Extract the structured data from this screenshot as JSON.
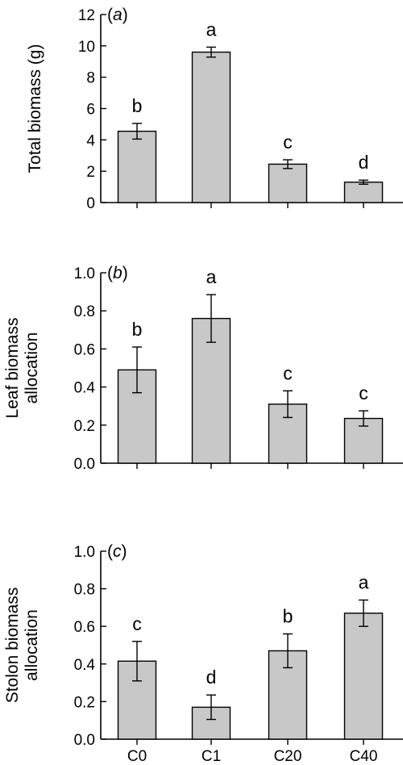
{
  "chart_data": [
    {
      "type": "bar",
      "panel_label": "(a)",
      "panel_letter": "a",
      "ylabel": "Total biomass (g)",
      "ylabel_lines": [
        "Total biomass (g)"
      ],
      "categories": [
        "C0",
        "C1",
        "C20",
        "C40"
      ],
      "show_xtick_labels": false,
      "values": [
        4.55,
        9.6,
        2.45,
        1.3
      ],
      "errors": [
        0.5,
        0.32,
        0.28,
        0.13
      ],
      "significance": [
        "b",
        "a",
        "c",
        "d"
      ],
      "ylim": [
        0,
        12
      ],
      "yticks": [
        0,
        2,
        4,
        6,
        8,
        10,
        12
      ],
      "ytick_labels": [
        "0",
        "2",
        "4",
        "6",
        "8",
        "10",
        "12"
      ],
      "bar_color": "#c8c8c8"
    },
    {
      "type": "bar",
      "panel_label": "(b)",
      "panel_letter": "b",
      "ylabel": "Leaf biomass allocation",
      "ylabel_lines": [
        "Leaf biomass",
        "allocation"
      ],
      "categories": [
        "C0",
        "C1",
        "C20",
        "C40"
      ],
      "show_xtick_labels": false,
      "values": [
        0.49,
        0.76,
        0.31,
        0.235
      ],
      "errors": [
        0.12,
        0.125,
        0.07,
        0.04
      ],
      "significance": [
        "b",
        "a",
        "c",
        "c"
      ],
      "ylim": [
        0,
        1.0
      ],
      "yticks": [
        0,
        0.2,
        0.4,
        0.6,
        0.8,
        1.0
      ],
      "ytick_labels": [
        "0.0",
        "0.2",
        "0.4",
        "0.6",
        "0.8",
        "1.0"
      ],
      "bar_color": "#c8c8c8"
    },
    {
      "type": "bar",
      "panel_label": "(c)",
      "panel_letter": "c",
      "ylabel": "Stolon biomass allocation",
      "ylabel_lines": [
        "Stolon biomass",
        "allocation"
      ],
      "categories": [
        "C0",
        "C1",
        "C20",
        "C40"
      ],
      "show_xtick_labels": true,
      "values": [
        0.415,
        0.17,
        0.47,
        0.67
      ],
      "errors": [
        0.105,
        0.065,
        0.09,
        0.07
      ],
      "significance": [
        "c",
        "d",
        "b",
        "a"
      ],
      "ylim": [
        0,
        1.0
      ],
      "yticks": [
        0,
        0.2,
        0.4,
        0.6,
        0.8,
        1.0
      ],
      "ytick_labels": [
        "0.0",
        "0.2",
        "0.4",
        "0.6",
        "0.8",
        "1.0"
      ],
      "bar_color": "#c8c8c8"
    }
  ]
}
